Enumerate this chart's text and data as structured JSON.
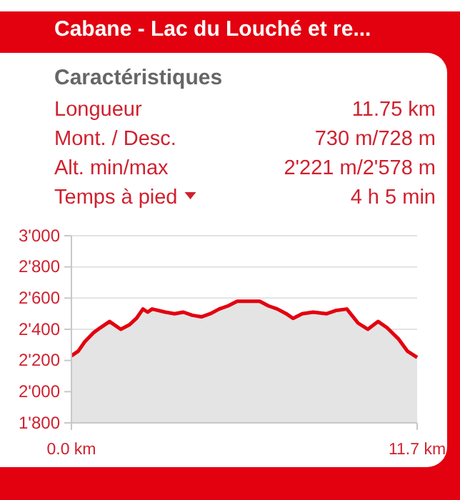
{
  "chart_data": {
    "type": "area",
    "title": "Cabane - Lac du Louché et re...",
    "subtitle": "Caractéristiques",
    "annotations": [
      "Longueur",
      "11.75 km",
      "Mont. / Desc.",
      "730 m/728 m",
      "Alt. min/max",
      "2'221 m/2'578 m",
      "Temps à pied",
      "4 h 5 min"
    ],
    "x": [
      0,
      0.23,
      0.45,
      0.76,
      0.98,
      1.29,
      1.67,
      1.97,
      2.2,
      2.42,
      2.58,
      2.73,
      3.18,
      3.49,
      3.79,
      4.09,
      4.4,
      4.7,
      5.0,
      5.3,
      5.61,
      5.99,
      6.37,
      6.67,
      6.97,
      7.27,
      7.5,
      7.81,
      8.18,
      8.64,
      8.94,
      9.32,
      9.7,
      10.03,
      10.38,
      10.68,
      11.06,
      11.37,
      11.7
    ],
    "series": [
      {
        "color": "#e3000f",
        "values": [
          2230,
          2260,
          2320,
          2380,
          2410,
          2450,
          2400,
          2430,
          2470,
          2530,
          2510,
          2530,
          2510,
          2500,
          2510,
          2490,
          2480,
          2500,
          2530,
          2550,
          2580,
          2580,
          2580,
          2550,
          2530,
          2500,
          2470,
          2500,
          2510,
          2500,
          2520,
          2530,
          2440,
          2400,
          2450,
          2410,
          2340,
          2260,
          2220
        ]
      }
    ],
    "xlim": [
      0,
      11.7
    ],
    "xticks": [
      {
        "value": 0,
        "label": "0.0 km"
      },
      {
        "value": 11.7,
        "label": "11.7 km"
      }
    ],
    "ylim": [
      1800,
      3000
    ],
    "yticks": [
      {
        "value": 1800,
        "label": "1'800"
      },
      {
        "value": 2000,
        "label": "2'000"
      },
      {
        "value": 2200,
        "label": "2'200"
      },
      {
        "value": 2400,
        "label": "2'400"
      },
      {
        "value": 2600,
        "label": "2'600"
      },
      {
        "value": 2800,
        "label": "2'800"
      },
      {
        "value": 3000,
        "label": "3'000"
      }
    ],
    "grid": "y"
  }
}
